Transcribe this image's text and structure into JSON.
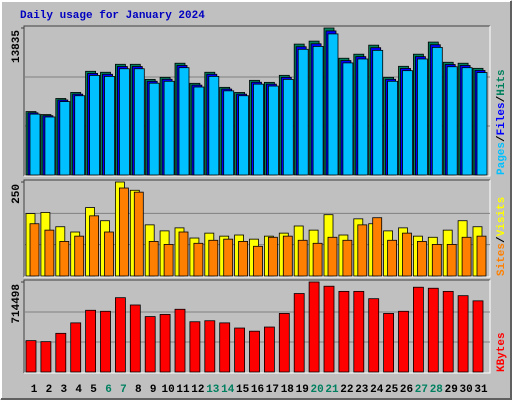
{
  "chart_data": [
    {
      "type": "bar",
      "title": "Daily usage for January 2024",
      "ylim": [
        0,
        13835
      ],
      "yticks": [
        13835
      ],
      "legend_separator": "/",
      "series": [
        {
          "name": "Hits",
          "color": "#00805c",
          "values": [
            5970,
            5690,
            7200,
            7770,
            9760,
            9670,
            10420,
            10420,
            9000,
            9190,
            10520,
            8630,
            9670,
            8250,
            7770,
            8910,
            8720,
            9380,
            12320,
            12600,
            13835,
            10990,
            11370,
            12220,
            9190,
            10230,
            11370,
            12510,
            10610,
            10520,
            10040
          ]
        },
        {
          "name": "Files",
          "color": "#0000ff",
          "values": [
            5850,
            5580,
            7060,
            7610,
            9560,
            9480,
            10210,
            10210,
            8820,
            9010,
            10310,
            8460,
            9480,
            8090,
            7610,
            8730,
            8550,
            9190,
            12070,
            12350,
            13560,
            10770,
            11140,
            11980,
            9010,
            10030,
            11140,
            12260,
            10400,
            10310,
            9840
          ]
        },
        {
          "name": "Pages",
          "color": "#00c0ff",
          "values": [
            5730,
            5460,
            6910,
            7460,
            9370,
            9280,
            10000,
            10000,
            8640,
            8820,
            10100,
            8280,
            9280,
            7920,
            7460,
            8550,
            8370,
            9000,
            11830,
            12100,
            13280,
            10550,
            10920,
            11730,
            8820,
            9820,
            10920,
            12010,
            10190,
            10100,
            9640
          ]
        }
      ]
    },
    {
      "type": "bar",
      "ylim": [
        0,
        250
      ],
      "yticks": [
        250
      ],
      "legend_separator": "/",
      "series": [
        {
          "name": "Visits",
          "color": "#ffff00",
          "values": [
            166,
            169,
            131,
            117,
            182,
            147,
            250,
            228,
            136,
            120,
            128,
            101,
            114,
            106,
            109,
            98,
            106,
            114,
            133,
            122,
            163,
            109,
            152,
            139,
            120,
            128,
            106,
            103,
            122,
            147,
            131
          ]
        },
        {
          "name": "Sites",
          "color": "#ff8000",
          "values": [
            139,
            122,
            92,
            106,
            160,
            117,
            234,
            223,
            92,
            84,
            117,
            87,
            95,
            98,
            92,
            79,
            103,
            106,
            95,
            87,
            103,
            95,
            136,
            155,
            95,
            114,
            92,
            84,
            84,
            103,
            106
          ]
        }
      ]
    },
    {
      "type": "bar",
      "ylim": [
        0,
        714498
      ],
      "yticks": [
        714498
      ],
      "categories": [
        "1",
        "2",
        "3",
        "4",
        "5",
        "6",
        "7",
        "8",
        "9",
        "10",
        "11",
        "12",
        "13",
        "14",
        "15",
        "16",
        "17",
        "18",
        "19",
        "20",
        "21",
        "22",
        "23",
        "24",
        "25",
        "26",
        "27",
        "28",
        "29",
        "30",
        "31"
      ],
      "category_colors": [
        "#000000",
        "#000000",
        "#000000",
        "#000000",
        "#000000",
        "#008060",
        "#008060",
        "#000000",
        "#000000",
        "#000000",
        "#000000",
        "#000000",
        "#008060",
        "#008060",
        "#000000",
        "#000000",
        "#000000",
        "#000000",
        "#000000",
        "#008060",
        "#008060",
        "#000000",
        "#000000",
        "#000000",
        "#000000",
        "#000000",
        "#008060",
        "#008060",
        "#000000",
        "#000000",
        "#000000"
      ],
      "series": [
        {
          "name": "KBytes",
          "color": "#ff0000",
          "values": [
            249000,
            241000,
            307000,
            390000,
            490000,
            482000,
            590000,
            532000,
            440000,
            457000,
            498000,
            399000,
            407000,
            390000,
            349000,
            324000,
            357000,
            465000,
            623000,
            714498,
            681000,
            640000,
            640000,
            582000,
            465000,
            482000,
            673000,
            665000,
            640000,
            606000,
            565000
          ]
        }
      ]
    }
  ]
}
